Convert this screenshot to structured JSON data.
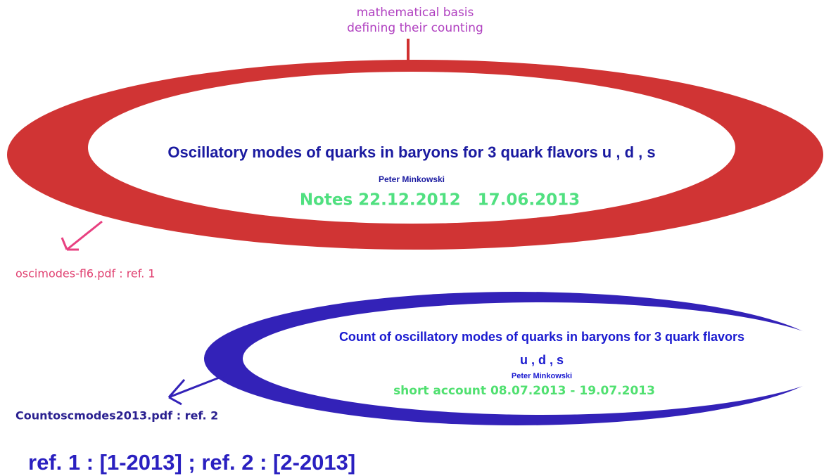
{
  "top_note": {
    "line1": "mathematical basis",
    "line2": "defining their counting"
  },
  "ellipse1": {
    "title": "Oscillatory modes of quarks in baryons for 3 quark flavors u , d , s",
    "author": "Peter Minkowski",
    "dates": "Notes 22.12.2012   17.06.2013",
    "file": "oscimodes-fl6.pdf : ref. 1"
  },
  "ellipse2": {
    "title_line1": "Count of oscillatory modes of quarks in baryons for 3 quark flavors",
    "title_line2": "u , d , s",
    "author": "Peter Minkowski",
    "dates": "short account 08.07.2013 - 19.07.2013",
    "file": "Countoscmodes2013.pdf : ref. 2"
  },
  "footer": "ref. 1 : [1-2013] ; ref. 2 : [2-2013]"
}
